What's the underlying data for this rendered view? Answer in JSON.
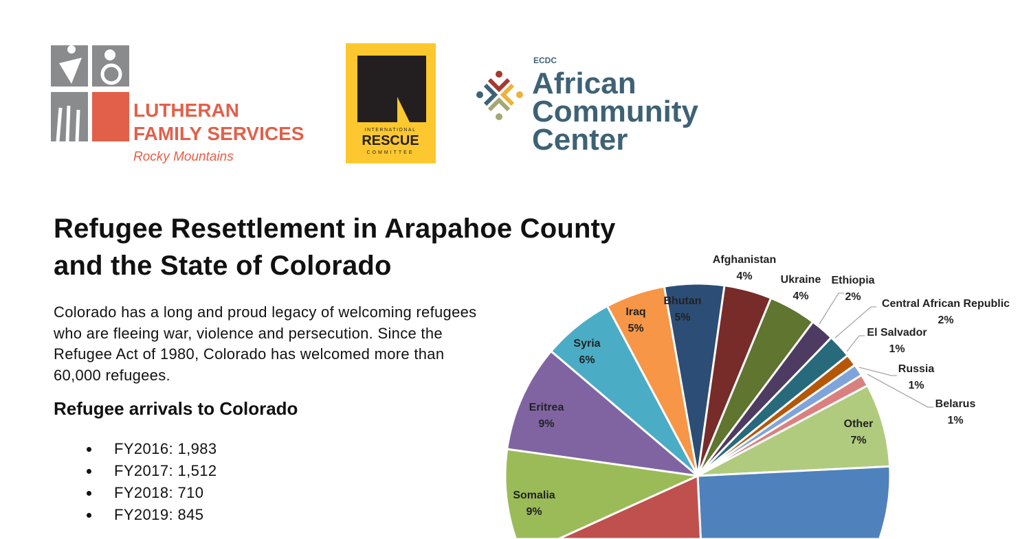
{
  "logos": {
    "lutheran": {
      "line1": "LUTHERAN",
      "line2": "FAMILY SERVICES",
      "line3": "Rocky Mountains",
      "color": "#E2604A"
    },
    "irc": {
      "line1": "INTERNATIONAL",
      "line2": "RESCUE",
      "line3": "COMMITTEE",
      "color": "#FDC82F"
    },
    "ecdc": {
      "small": "ECDC",
      "line1": "African",
      "line2": "Community",
      "line3": "Center",
      "color": "#3E6275"
    }
  },
  "title_line1": "Refugee Resettlement in Arapahoe County",
  "title_line2": "and the State of Colorado",
  "intro": "Colorado has a long and proud legacy of welcoming refugees who are fleeing war, violence and persecution. Since the Refugee Act of 1980, Colorado has welcomed more than 60,000 refugees.",
  "arrivals_heading": "Refugee arrivals to Colorado",
  "arrivals": [
    {
      "label": "FY2016: ",
      "value": "1,983"
    },
    {
      "label": "FY2017: ",
      "value": "1,512"
    },
    {
      "label": "FY2018: ",
      "value": "710"
    },
    {
      "label": "FY2019: ",
      "value": "845"
    }
  ],
  "chart_data": {
    "type": "pie",
    "unit": "%",
    "slices": [
      {
        "label": "Afghanistan",
        "value": 4,
        "text": "4%",
        "color": "#772C2A"
      },
      {
        "label": "Ukraine",
        "value": 4,
        "text": "4%",
        "color": "#5F7530"
      },
      {
        "label": "Ethiopia",
        "value": 2,
        "text": "2%",
        "color": "#4D3B62"
      },
      {
        "label": "Central African Republic",
        "value": 2,
        "text": "2%",
        "color": "#276A7C"
      },
      {
        "label": "El Salvador",
        "value": 1,
        "text": "1%",
        "color": "#B65708"
      },
      {
        "label": "Russia",
        "value": 1,
        "text": "1%",
        "color": "#7EA4DA"
      },
      {
        "label": "Belarus",
        "value": 1,
        "text": "1%",
        "color": "#DA8180"
      },
      {
        "label": "Other",
        "value": 7,
        "text": "7%",
        "color": "#B0CB7E"
      },
      {
        "label": "",
        "value": 25,
        "text": "",
        "color": "#4F81BD"
      },
      {
        "label": "",
        "value": 19,
        "text": "",
        "color": "#C0504D"
      },
      {
        "label": "Somalia",
        "value": 9,
        "text": "9%",
        "color": "#9BBB59"
      },
      {
        "label": "Eritrea",
        "value": 9,
        "text": "9%",
        "color": "#8064A2"
      },
      {
        "label": "Syria",
        "value": 6,
        "text": "6%",
        "color": "#4BACC6"
      },
      {
        "label": "Iraq",
        "value": 5,
        "text": "5%",
        "color": "#F79646"
      },
      {
        "label": "Bhutan",
        "value": 5,
        "text": "5%",
        "color": "#2C4D75"
      }
    ]
  }
}
